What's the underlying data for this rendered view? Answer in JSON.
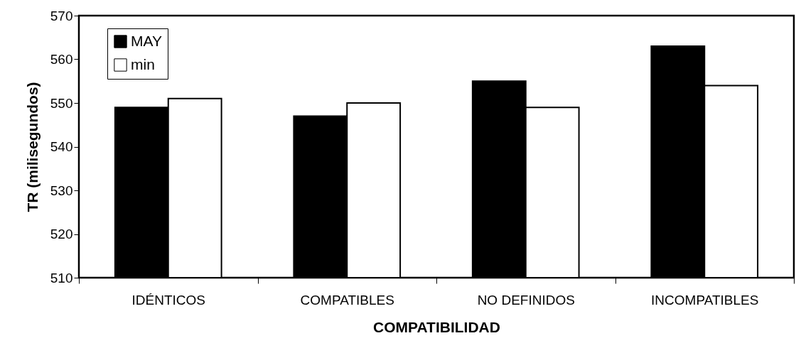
{
  "chart_data": {
    "type": "bar",
    "xlabel": "COMPATIBILIDAD",
    "ylabel": "TR (milisegundos)",
    "categories": [
      "IDÉNTICOS",
      "COMPATIBLES",
      "NO DEFINIDOS",
      "INCOMPATIBLES"
    ],
    "series": [
      {
        "name": "MAY",
        "color": "#000000",
        "values": [
          549,
          547,
          555,
          563
        ]
      },
      {
        "name": "min",
        "color": "#ffffff",
        "values": [
          551,
          550,
          549,
          554
        ]
      }
    ],
    "ylim": [
      510,
      570
    ],
    "yticks": [
      510,
      520,
      530,
      540,
      550,
      560,
      570
    ],
    "grid": false,
    "legend": "top left"
  }
}
